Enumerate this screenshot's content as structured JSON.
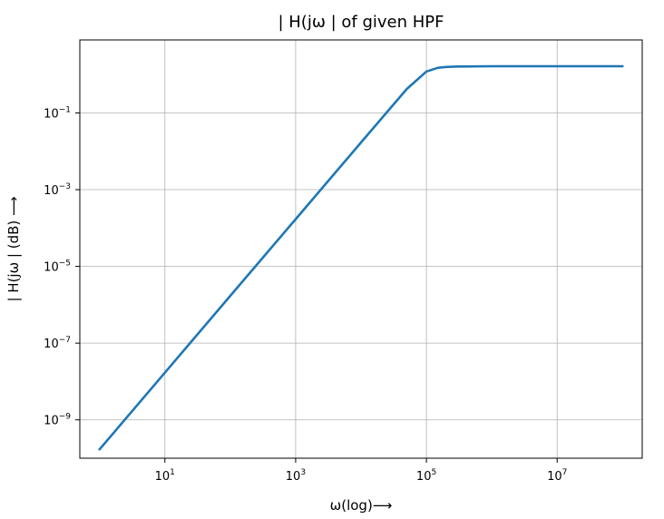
{
  "chart_data": {
    "type": "line",
    "title": "| H(jω |  of given HPF",
    "xlabel": "ω(log)⟶",
    "ylabel": "| H(jω | (dB) ⟶",
    "xscale": "log",
    "yscale": "log",
    "xlim": [
      0.5,
      200000000
    ],
    "ylim": [
      1e-10,
      8
    ],
    "grid": true,
    "x_ticks": [
      {
        "base": "10",
        "exp": "1",
        "value": 10
      },
      {
        "base": "10",
        "exp": "3",
        "value": 1000
      },
      {
        "base": "10",
        "exp": "5",
        "value": 100000
      },
      {
        "base": "10",
        "exp": "7",
        "value": 10000000
      }
    ],
    "y_ticks": [
      {
        "base": "10",
        "exp": "−1",
        "value": 0.1
      },
      {
        "base": "10",
        "exp": "−3",
        "value": 0.001
      },
      {
        "base": "10",
        "exp": "−5",
        "value": 1e-05
      },
      {
        "base": "10",
        "exp": "−7",
        "value": 1e-07
      },
      {
        "base": "10",
        "exp": "−9",
        "value": 1e-09
      }
    ],
    "series": [
      {
        "color": "#1f77b4",
        "x": [
          1,
          10,
          100,
          1000,
          10000,
          50000,
          100000,
          150000,
          200000,
          300000,
          1000000,
          10000000,
          100000000
        ],
        "y": [
          1.7e-10,
          1.7e-08,
          1.7e-06,
          0.00017,
          0.017,
          0.42,
          1.2,
          1.5,
          1.58,
          1.62,
          1.65,
          1.65,
          1.65
        ]
      }
    ]
  }
}
